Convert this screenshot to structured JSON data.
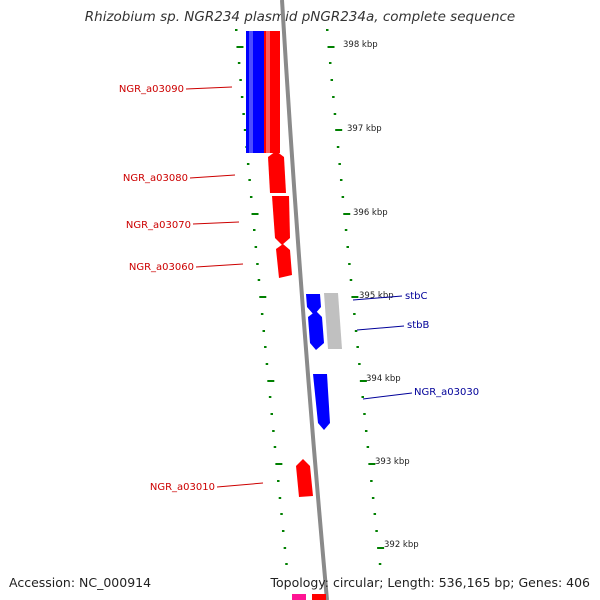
{
  "title": "Rhizobium sp. NGR234 plasmid pNGR234a, complete sequence",
  "footer": {
    "accession": "Accession: NC_000914",
    "stats": "Topology: circular; Length: 536,165 bp; Genes: 406"
  },
  "colors": {
    "forward": "#ff0000",
    "reverse": "#0000ff",
    "other": "#c0c0c0",
    "tick": "#008000",
    "backbone": "#808080",
    "label_forward": "#cc0000",
    "label_reverse": "#000099"
  },
  "scale": {
    "unit": "kbp",
    "major_ticks": [
      {
        "kbp": 398,
        "label": "398 kbp"
      },
      {
        "kbp": 397,
        "label": "397 kbp"
      },
      {
        "kbp": 396,
        "label": "396 kbp"
      },
      {
        "kbp": 395,
        "label": "395 kbp"
      },
      {
        "kbp": 394,
        "label": "394 kbp"
      },
      {
        "kbp": 393,
        "label": "393 kbp"
      },
      {
        "kbp": 392,
        "label": "392 kbp"
      }
    ]
  },
  "labeled_genes": [
    {
      "name": "NGR_a03090",
      "strand": "forward"
    },
    {
      "name": "NGR_a03080",
      "strand": "forward"
    },
    {
      "name": "NGR_a03070",
      "strand": "forward"
    },
    {
      "name": "NGR_a03060",
      "strand": "forward"
    },
    {
      "name": "stbC",
      "strand": "reverse"
    },
    {
      "name": "stbB",
      "strand": "reverse"
    },
    {
      "name": "NGR_a03030",
      "strand": "reverse"
    },
    {
      "name": "NGR_a03010",
      "strand": "forward"
    }
  ]
}
